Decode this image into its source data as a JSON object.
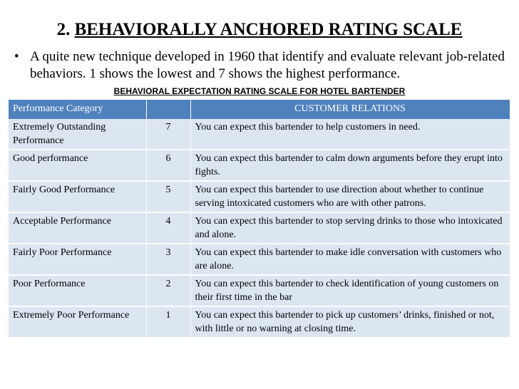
{
  "slide": {
    "title_number": "2.",
    "title": "BEHAVIORALLY ANCHORED RATING SCALE",
    "bullet_symbol": "•",
    "bullet_text": "A quite new technique developed in 1960 that identify and evaluate relevant job-related behaviors. 1 shows the lowest and 7 shows the highest performance."
  },
  "table": {
    "caption": "BEHAVIORAL EXPECTATION RATING SCALE FOR HOTEL BARTENDER",
    "headers": [
      "Performance Category",
      "",
      "CUSTOMER RELATIONS"
    ],
    "header_color": "#4f81bd",
    "row_color": "#dce6f1",
    "rows": [
      {
        "category": "Extremely Outstanding Performance",
        "score": "7",
        "description": "You can expect this bartender to help customers in need."
      },
      {
        "category": "Good performance",
        "score": "6",
        "description": "You can expect this bartender to calm down arguments before they erupt into fights."
      },
      {
        "category": "Fairly Good Performance",
        "score": "5",
        "description": "You can  expect this bartender to use direction about whether to continue serving intoxicated customers who are with other patrons."
      },
      {
        "category": "Acceptable Performance",
        "score": "4",
        "description": "You can  expect this bartender to stop serving drinks to those who intoxicated and alone."
      },
      {
        "category": "Fairly Poor Performance",
        "score": "3",
        "description": "You can expect this bartender to make idle conversation with customers who are alone."
      },
      {
        "category": "Poor Performance",
        "score": "2",
        "description": "You can  expect this bartender to check identification of young customers on their first time in the bar"
      },
      {
        "category": "Extremely Poor Performance",
        "score": "1",
        "description": "You can  expect this bartender to pick up customers’ drinks, finished or not, with little or no warning at closing time."
      }
    ]
  }
}
